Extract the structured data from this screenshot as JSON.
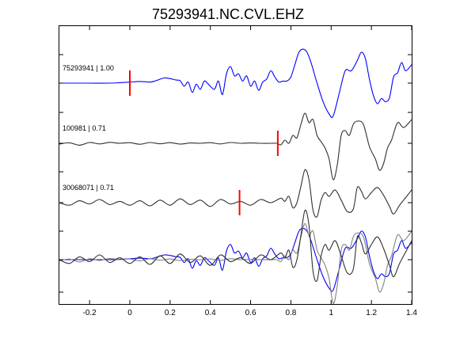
{
  "chart_data": {
    "type": "line",
    "title": "75293941.NC.CVL.EHZ",
    "xlabel": "",
    "ylabel": "",
    "xlim": [
      -0.35,
      1.4
    ],
    "xticks": [
      -0.2,
      0,
      0.2,
      0.4,
      0.6,
      0.8,
      1,
      1.2,
      1.4
    ],
    "xtick_labels": [
      "-0.2",
      "0",
      "0.2",
      "0.4",
      "0.6",
      "0.8",
      "1",
      "1.2",
      "1.4"
    ],
    "grid": false,
    "colors": {
      "reference": "#0000ff",
      "matched": "#303030",
      "matched_alt": "#808080",
      "pick": "#ff0000",
      "axes": "#000000"
    },
    "traces": [
      {
        "name": "75293941 | 1.00",
        "color": "#0000ff",
        "pick_time": 0.0,
        "points": [
          [
            -0.35,
            0.0
          ],
          [
            -0.3,
            0.0
          ],
          [
            -0.2,
            0.0
          ],
          [
            -0.1,
            0.0
          ],
          [
            -0.05,
            0.02
          ],
          [
            0.0,
            0.05
          ],
          [
            0.05,
            0.08
          ],
          [
            0.1,
            0.05
          ],
          [
            0.13,
            0.12
          ],
          [
            0.17,
            0.25
          ],
          [
            0.2,
            0.22
          ],
          [
            0.23,
            0.15
          ],
          [
            0.25,
            0.12
          ],
          [
            0.27,
            -0.15
          ],
          [
            0.29,
            0.05
          ],
          [
            0.31,
            -0.45
          ],
          [
            0.33,
            -0.05
          ],
          [
            0.35,
            -0.3
          ],
          [
            0.37,
            0.1
          ],
          [
            0.39,
            -0.05
          ],
          [
            0.42,
            -0.3
          ],
          [
            0.44,
            0.1
          ],
          [
            0.46,
            -0.55
          ],
          [
            0.48,
            0.45
          ],
          [
            0.5,
            0.8
          ],
          [
            0.52,
            0.35
          ],
          [
            0.54,
            0.45
          ],
          [
            0.56,
            0.1
          ],
          [
            0.58,
            0.35
          ],
          [
            0.6,
            -0.15
          ],
          [
            0.62,
            0.1
          ],
          [
            0.64,
            -0.35
          ],
          [
            0.66,
            0.05
          ],
          [
            0.68,
            0.2
          ],
          [
            0.7,
            0.6
          ],
          [
            0.72,
            0.3
          ],
          [
            0.74,
            0.05
          ],
          [
            0.76,
            0.1
          ],
          [
            0.78,
            0.1
          ],
          [
            0.8,
            0.3
          ],
          [
            0.82,
            0.9
          ],
          [
            0.84,
            1.5
          ],
          [
            0.86,
            1.65
          ],
          [
            0.88,
            1.5
          ],
          [
            0.9,
            1.0
          ],
          [
            0.93,
            0.0
          ],
          [
            0.96,
            -0.9
          ],
          [
            0.99,
            -1.5
          ],
          [
            1.01,
            -1.6
          ],
          [
            1.04,
            -0.5
          ],
          [
            1.07,
            0.6
          ],
          [
            1.1,
            0.6
          ],
          [
            1.13,
            1.1
          ],
          [
            1.15,
            1.5
          ],
          [
            1.17,
            1.2
          ],
          [
            1.19,
            0.2
          ],
          [
            1.21,
            -0.6
          ],
          [
            1.23,
            -1.0
          ],
          [
            1.25,
            -0.75
          ],
          [
            1.27,
            -0.9
          ],
          [
            1.29,
            -0.7
          ],
          [
            1.31,
            0.3
          ],
          [
            1.33,
            0.5
          ],
          [
            1.35,
            1.0
          ],
          [
            1.37,
            0.6
          ],
          [
            1.4,
            0.9
          ]
        ]
      },
      {
        "name": "100981 | 0.71",
        "color": "#303030",
        "pick_time": 0.735,
        "points": [
          [
            -0.35,
            -0.05
          ],
          [
            -0.3,
            0.03
          ],
          [
            -0.25,
            -0.12
          ],
          [
            -0.2,
            0.05
          ],
          [
            -0.15,
            -0.04
          ],
          [
            -0.1,
            0.06
          ],
          [
            -0.05,
            0.0
          ],
          [
            0.0,
            0.04
          ],
          [
            0.05,
            -0.06
          ],
          [
            0.1,
            0.05
          ],
          [
            0.15,
            -0.03
          ],
          [
            0.2,
            0.04
          ],
          [
            0.25,
            -0.05
          ],
          [
            0.3,
            0.02
          ],
          [
            0.35,
            0.0
          ],
          [
            0.4,
            0.04
          ],
          [
            0.45,
            -0.04
          ],
          [
            0.5,
            0.05
          ],
          [
            0.55,
            0.0
          ],
          [
            0.6,
            0.02
          ],
          [
            0.65,
            0.0
          ],
          [
            0.7,
            0.0
          ],
          [
            0.73,
            0.0
          ],
          [
            0.75,
            -0.1
          ],
          [
            0.77,
            0.2
          ],
          [
            0.79,
            0.0
          ],
          [
            0.81,
            0.5
          ],
          [
            0.83,
            0.35
          ],
          [
            0.85,
            1.2
          ],
          [
            0.87,
            1.9
          ],
          [
            0.89,
            1.3
          ],
          [
            0.91,
            1.5
          ],
          [
            0.93,
            0.5
          ],
          [
            0.95,
            0.1
          ],
          [
            0.97,
            -0.3
          ],
          [
            0.99,
            -1.0
          ],
          [
            1.01,
            -2.3
          ],
          [
            1.03,
            -1.4
          ],
          [
            1.05,
            0.5
          ],
          [
            1.07,
            0.8
          ],
          [
            1.09,
            0.5
          ],
          [
            1.11,
            1.2
          ],
          [
            1.13,
            1.4
          ],
          [
            1.16,
            1.2
          ],
          [
            1.19,
            -0.2
          ],
          [
            1.22,
            -1.0
          ],
          [
            1.24,
            -1.7
          ],
          [
            1.26,
            -1.3
          ],
          [
            1.28,
            -0.3
          ],
          [
            1.3,
            0.2
          ],
          [
            1.33,
            1.3
          ],
          [
            1.36,
            1.0
          ],
          [
            1.4,
            1.5
          ]
        ]
      },
      {
        "name": "30068071 | 0.71",
        "color": "#303030",
        "pick_time": 0.545,
        "points": [
          [
            -0.35,
            0.0
          ],
          [
            -0.3,
            -0.2
          ],
          [
            -0.25,
            0.15
          ],
          [
            -0.2,
            -0.1
          ],
          [
            -0.15,
            0.25
          ],
          [
            -0.1,
            -0.15
          ],
          [
            -0.05,
            0.1
          ],
          [
            0.0,
            -0.2
          ],
          [
            0.05,
            0.15
          ],
          [
            0.1,
            -0.25
          ],
          [
            0.15,
            0.2
          ],
          [
            0.2,
            -0.2
          ],
          [
            0.25,
            0.3
          ],
          [
            0.3,
            -0.15
          ],
          [
            0.35,
            0.2
          ],
          [
            0.4,
            -0.3
          ],
          [
            0.45,
            0.25
          ],
          [
            0.5,
            -0.1
          ],
          [
            0.55,
            0.1
          ],
          [
            0.6,
            -0.2
          ],
          [
            0.65,
            0.25
          ],
          [
            0.7,
            0.0
          ],
          [
            0.75,
            0.35
          ],
          [
            0.77,
            0.1
          ],
          [
            0.79,
            0.5
          ],
          [
            0.81,
            -0.4
          ],
          [
            0.83,
            0.0
          ],
          [
            0.85,
            1.3
          ],
          [
            0.87,
            2.6
          ],
          [
            0.89,
            1.8
          ],
          [
            0.91,
            -0.6
          ],
          [
            0.93,
            -1.1
          ],
          [
            0.95,
            0.2
          ],
          [
            0.97,
            0.8
          ],
          [
            0.99,
            0.5
          ],
          [
            1.02,
            1.0
          ],
          [
            1.05,
            0.2
          ],
          [
            1.08,
            -0.7
          ],
          [
            1.11,
            -0.5
          ],
          [
            1.13,
            1.2
          ],
          [
            1.15,
            0.9
          ],
          [
            1.17,
            0.3
          ],
          [
            1.2,
            0.8
          ],
          [
            1.23,
            1.2
          ],
          [
            1.26,
            0.6
          ],
          [
            1.29,
            -0.3
          ],
          [
            1.31,
            -0.9
          ],
          [
            1.34,
            -0.2
          ],
          [
            1.37,
            0.4
          ],
          [
            1.4,
            1.0
          ]
        ]
      }
    ],
    "overlay": {
      "series": [
        {
          "ref": 0,
          "color": "#0000ff"
        },
        {
          "ref": 1,
          "color": "#808080"
        },
        {
          "ref": 2,
          "color": "#303030"
        }
      ]
    }
  }
}
